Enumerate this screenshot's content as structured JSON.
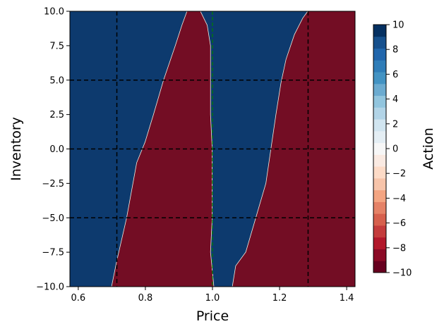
{
  "chart_data": {
    "type": "heatmap",
    "title": "",
    "xlabel": "Price",
    "ylabel": "Inventory",
    "xlim": [
      0.575,
      1.425
    ],
    "ylim": [
      -10,
      10
    ],
    "xticks": [
      0.6,
      0.8,
      1.0,
      1.2,
      1.4
    ],
    "xtick_labels": [
      "0.6",
      "0.8",
      "1.0",
      "1.2",
      "1.4"
    ],
    "yticks": [
      10.0,
      7.5,
      5.0,
      2.5,
      0.0,
      -2.5,
      -5.0,
      -7.5,
      -10.0
    ],
    "ytick_labels": [
      "10.0",
      "7.5",
      "5.0",
      "2.5",
      "0.0",
      "−2.5",
      "−5.0",
      "−7.5",
      "−10.0"
    ],
    "colorbar": {
      "label": "Action",
      "min": -10,
      "max": 10,
      "ticks": [
        10,
        8,
        6,
        4,
        2,
        0,
        -2,
        -4,
        -6,
        -8,
        -10
      ],
      "tick_labels": [
        "10",
        "8",
        "6",
        "4",
        "2",
        "0",
        "−2",
        "−4",
        "−6",
        "−8",
        "−10"
      ],
      "colors": [
        "#67001f",
        "#8b0a26",
        "#b2182b",
        "#c43c3c",
        "#d6604d",
        "#e58267",
        "#f4a582",
        "#f7c4aa",
        "#fddbc7",
        "#faeae2",
        "#f7f7f7",
        "#e4eef4",
        "#d1e5f0",
        "#b2d4e7",
        "#92c5de",
        "#6cabd0",
        "#4393c3",
        "#2f7db8",
        "#2166ac",
        "#16508d",
        "#053061"
      ]
    },
    "regions": [
      {
        "action": 10,
        "color": "#0d3a6e",
        "boundary_left": [],
        "boundary_right": [
          [
            0.7,
            -10
          ],
          [
            0.715,
            -8.2
          ],
          [
            0.745,
            -5.0
          ],
          [
            0.775,
            -1.0
          ],
          [
            0.8,
            0.5
          ],
          [
            0.825,
            2.5
          ],
          [
            0.855,
            5.0
          ],
          [
            0.89,
            7.5
          ],
          [
            0.91,
            9.0
          ],
          [
            0.925,
            10
          ]
        ]
      },
      {
        "action": -10,
        "color": "#730d24",
        "boundary_left": [
          [
            0.7,
            -10
          ],
          [
            0.715,
            -8.2
          ],
          [
            0.745,
            -5.0
          ],
          [
            0.775,
            -1.0
          ],
          [
            0.8,
            0.5
          ],
          [
            0.825,
            2.5
          ],
          [
            0.855,
            5.0
          ],
          [
            0.89,
            7.5
          ],
          [
            0.91,
            9.0
          ],
          [
            0.925,
            10
          ]
        ],
        "boundary_right": [
          [
            1.005,
            -10
          ],
          [
            0.995,
            -7.5
          ],
          [
            1.0,
            -5.0
          ],
          [
            1.0,
            0.0
          ],
          [
            0.995,
            2.5
          ],
          [
            0.995,
            7.5
          ],
          [
            0.985,
            9.0
          ],
          [
            0.965,
            10
          ]
        ]
      },
      {
        "action": 10,
        "color": "#0d3a6e",
        "boundary_left": [
          [
            1.005,
            -10
          ],
          [
            0.995,
            -7.5
          ],
          [
            1.0,
            -5.0
          ],
          [
            1.0,
            0.0
          ],
          [
            0.995,
            2.5
          ],
          [
            0.995,
            7.5
          ],
          [
            0.985,
            9.0
          ],
          [
            0.965,
            10
          ]
        ],
        "boundary_right": [
          [
            1.06,
            -10
          ],
          [
            1.07,
            -8.5
          ],
          [
            1.1,
            -7.5
          ],
          [
            1.13,
            -5.0
          ],
          [
            1.16,
            -2.5
          ],
          [
            1.175,
            0.0
          ],
          [
            1.19,
            2.5
          ],
          [
            1.205,
            4.8
          ],
          [
            1.22,
            6.5
          ],
          [
            1.245,
            8.3
          ],
          [
            1.27,
            9.5
          ],
          [
            1.285,
            10
          ]
        ]
      },
      {
        "action": -10,
        "color": "#730d24",
        "boundary_left": [
          [
            1.06,
            -10
          ],
          [
            1.07,
            -8.5
          ],
          [
            1.1,
            -7.5
          ],
          [
            1.13,
            -5.0
          ],
          [
            1.16,
            -2.5
          ],
          [
            1.175,
            0.0
          ],
          [
            1.19,
            2.5
          ],
          [
            1.205,
            4.8
          ],
          [
            1.22,
            6.5
          ],
          [
            1.245,
            8.3
          ],
          [
            1.27,
            9.5
          ],
          [
            1.285,
            10
          ]
        ],
        "boundary_right": []
      }
    ],
    "reference_lines": {
      "vertical_dashed_black": [
        0.715,
        1.285
      ],
      "vertical_dashed_green": [
        1.0
      ],
      "horizontal_dashed_black": [
        5.0,
        0.0,
        -5.0
      ]
    },
    "grid": false,
    "legend": "colorbar-right"
  }
}
